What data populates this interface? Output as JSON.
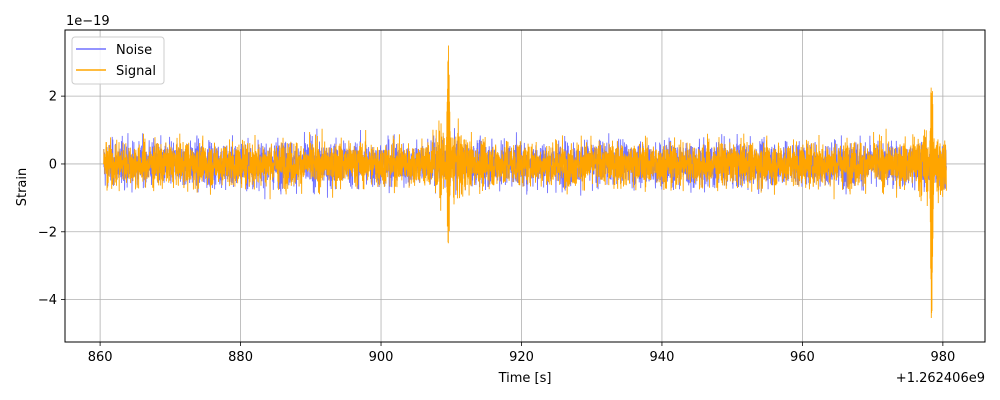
{
  "chart_data": {
    "type": "line",
    "title": "",
    "xlabel": "Time [s]",
    "ylabel": "Strain",
    "x_offset_label": "+1.262406e9",
    "y_exponent_label": "1e−19",
    "xlim": [
      855,
      986
    ],
    "ylim": [
      -5.25,
      3.95
    ],
    "x_ticks": [
      860,
      880,
      900,
      920,
      940,
      960,
      980
    ],
    "y_ticks": [
      -4,
      -2,
      0,
      2
    ],
    "x_tick_labels": [
      "860",
      "880",
      "900",
      "920",
      "940",
      "960",
      "980"
    ],
    "y_tick_labels": [
      "−4",
      "−2",
      "0",
      "2"
    ],
    "grid": true,
    "legend_position": "top-left",
    "x_range_data": [
      860.5,
      980.5
    ],
    "series": [
      {
        "name": "Noise",
        "color": "#7070ff",
        "envelope_std": 0.62
      },
      {
        "name": "Signal",
        "color": "#ffa500",
        "envelope_std": 0.62,
        "events": [
          {
            "x": 909.6,
            "y_max": 3.55,
            "y_min": -3.05
          },
          {
            "x": 978.4,
            "y_max": 2.95,
            "y_min": -4.8
          }
        ]
      }
    ]
  }
}
